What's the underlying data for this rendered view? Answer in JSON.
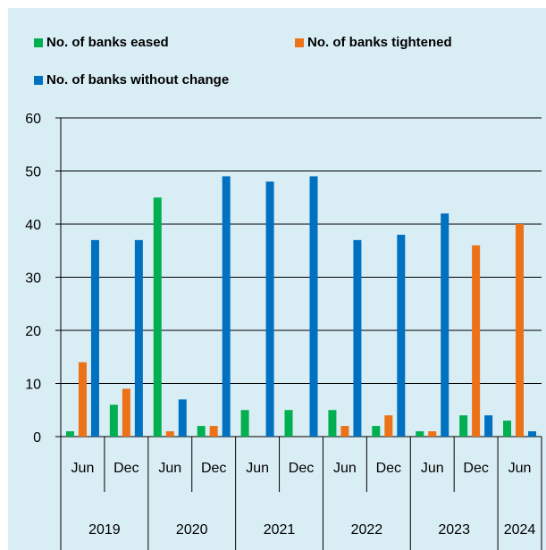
{
  "colors": {
    "background": "#d9edf4",
    "eased": "#00b050",
    "tightened": "#ed7117",
    "without_change": "#0070c0"
  },
  "legend": {
    "eased": "No. of banks eased",
    "tightened": "No. of banks tightened",
    "without_change": "No. of banks without change"
  },
  "chart_data": {
    "type": "bar",
    "title": "",
    "xlabel": "",
    "ylabel": "",
    "ylim": [
      0,
      60
    ],
    "yticks": [
      "0",
      "10",
      "20",
      "30",
      "40",
      "50",
      "60"
    ],
    "grid": true,
    "legend_position": "top",
    "categories": [
      "Jun",
      "Dec",
      "Jun",
      "Dec",
      "Jun",
      "Dec",
      "Jun",
      "Dec",
      "Jun",
      "Dec",
      "Jun"
    ],
    "years": [
      {
        "label": "2019",
        "count": 2
      },
      {
        "label": "2020",
        "count": 2
      },
      {
        "label": "2021",
        "count": 2
      },
      {
        "label": "2022",
        "count": 2
      },
      {
        "label": "2023",
        "count": 2
      },
      {
        "label": "2024",
        "count": 1
      }
    ],
    "series": [
      {
        "name": "No. of banks eased",
        "key": "eased",
        "values": [
          1,
          6,
          45,
          2,
          5,
          5,
          5,
          2,
          1,
          4,
          3
        ]
      },
      {
        "name": "No. of banks tightened",
        "key": "tightened",
        "values": [
          14,
          9,
          1,
          2,
          0,
          0,
          2,
          4,
          1,
          36,
          40
        ]
      },
      {
        "name": "No. of banks without change",
        "key": "without_change",
        "values": [
          37,
          37,
          7,
          49,
          48,
          49,
          37,
          38,
          42,
          4,
          1
        ]
      }
    ]
  }
}
